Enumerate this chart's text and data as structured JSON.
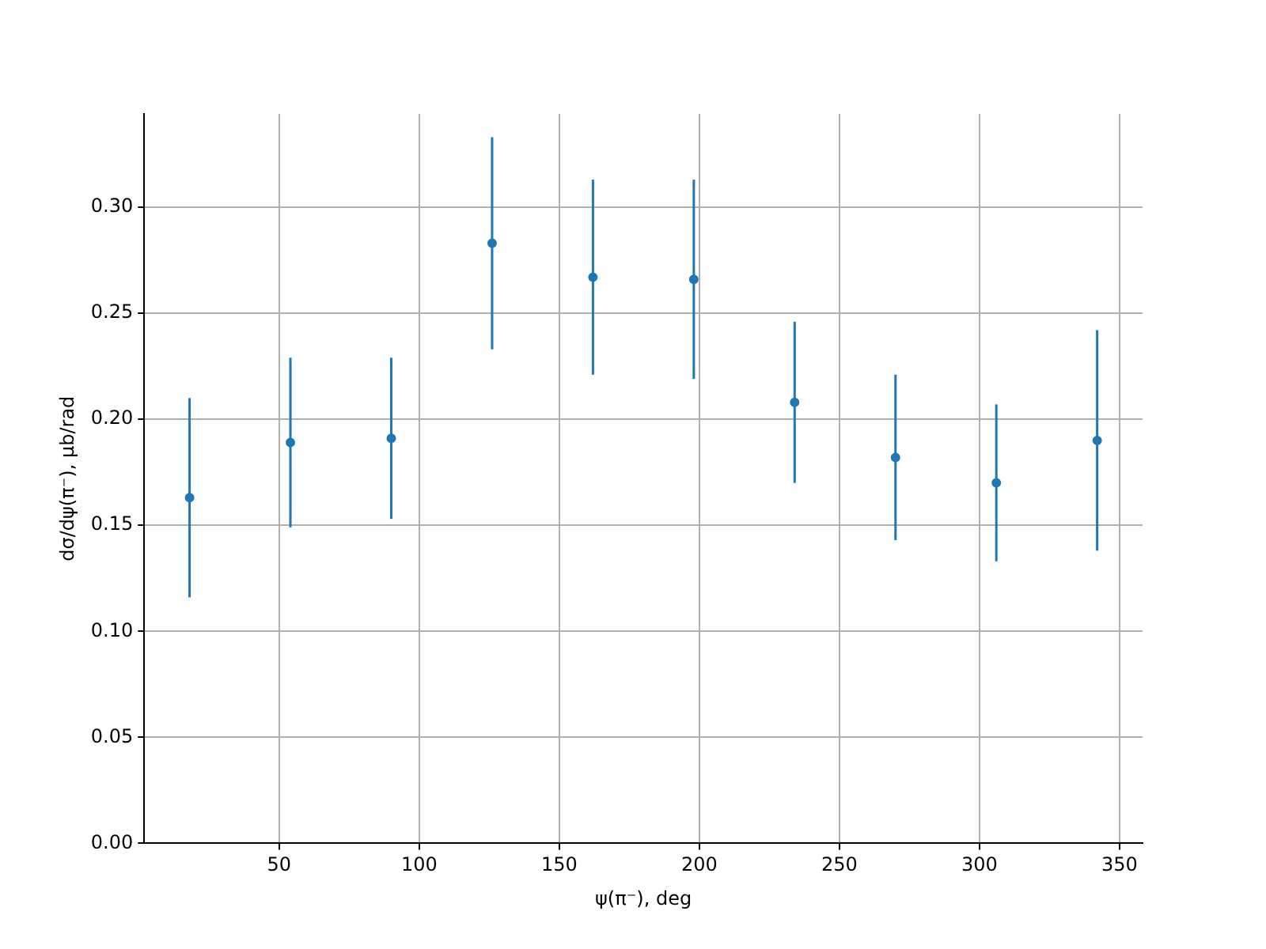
{
  "chart_data": {
    "type": "scatter",
    "xlabel": "ψ(π⁻), deg",
    "ylabel": "dσ/dψ(π⁻), μb/rad",
    "x": [
      18,
      54,
      90,
      126,
      162,
      198,
      234,
      270,
      306,
      342
    ],
    "series": [
      {
        "color": "#1f77b4",
        "values": [
          0.163,
          0.189,
          0.191,
          0.283,
          0.267,
          0.266,
          0.208,
          0.182,
          0.17,
          0.19
        ],
        "errors": [
          0.047,
          0.04,
          0.038,
          0.05,
          0.046,
          0.047,
          0.038,
          0.039,
          0.037,
          0.052
        ]
      }
    ],
    "xlim": [
      1.8,
      358.2
    ],
    "xticks": [
      50,
      100,
      150,
      200,
      250,
      300,
      350
    ],
    "ylim": [
      0,
      0.344
    ],
    "yticks": [
      {
        "value": 0,
        "label": "0.00"
      },
      {
        "value": 0.05,
        "label": "0.05"
      },
      {
        "value": 0.1,
        "label": "0.10"
      },
      {
        "value": 0.15,
        "label": "0.15"
      },
      {
        "value": 0.2,
        "label": "0.20"
      },
      {
        "value": 0.25,
        "label": "0.25"
      },
      {
        "value": 0.3,
        "label": "0.30"
      }
    ],
    "grid": true,
    "marker": "circle",
    "legend": false
  }
}
